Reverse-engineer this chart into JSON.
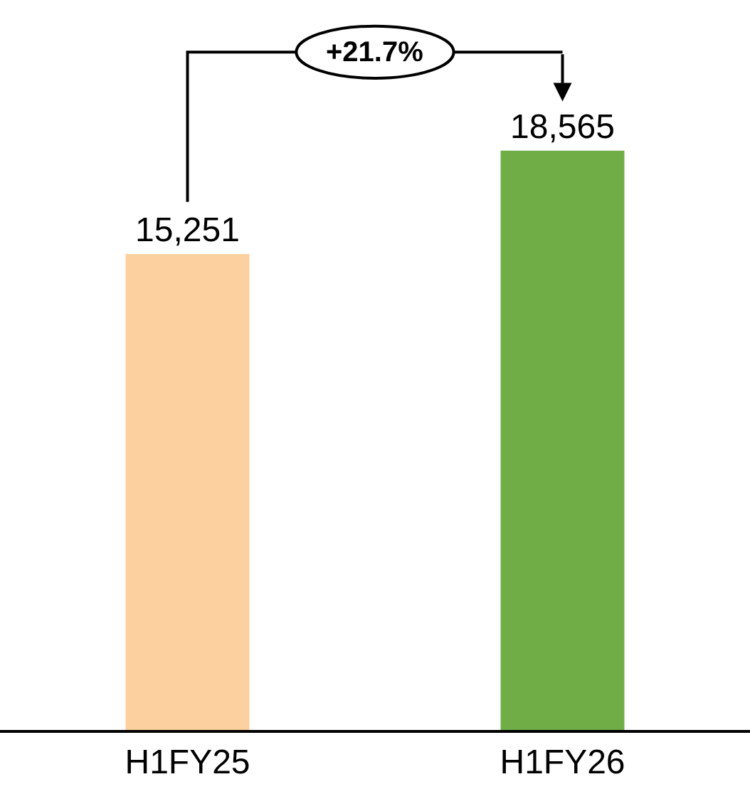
{
  "chart_data": {
    "type": "bar",
    "categories": [
      "H1FY25",
      "H1FY26"
    ],
    "values": [
      15251,
      18565
    ],
    "colors": [
      "#fdd09f",
      "#70ad47"
    ],
    "data_labels": true,
    "value_labels": [
      "15,251",
      "18,565"
    ],
    "annotations": [
      "+21.7%"
    ],
    "legend": false
  }
}
